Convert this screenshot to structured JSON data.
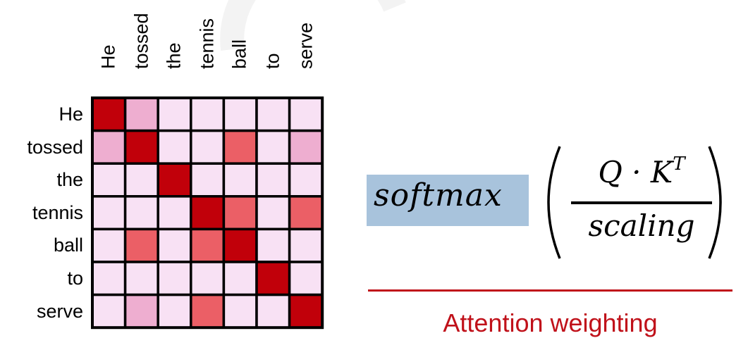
{
  "words": [
    "He",
    "tossed",
    "the",
    "tennis",
    "ball",
    "to",
    "serve"
  ],
  "attention": [
    [
      1.0,
      0.3,
      0.0,
      0.0,
      0.0,
      0.0,
      0.0
    ],
    [
      0.3,
      1.0,
      0.0,
      0.0,
      0.6,
      0.0,
      0.3
    ],
    [
      0.0,
      0.0,
      1.0,
      0.0,
      0.0,
      0.0,
      0.0
    ],
    [
      0.0,
      0.0,
      0.0,
      1.0,
      0.6,
      0.0,
      0.6
    ],
    [
      0.0,
      0.6,
      0.0,
      0.6,
      1.0,
      0.0,
      0.0
    ],
    [
      0.0,
      0.0,
      0.0,
      0.0,
      0.0,
      1.0,
      0.0
    ],
    [
      0.0,
      0.3,
      0.0,
      0.6,
      0.0,
      0.0,
      1.0
    ]
  ],
  "colors": {
    "cell_low": "#f8e1f4",
    "cell_light": "#eeaed0",
    "cell_medium": "#eb5f66",
    "cell_high": "#c1000a",
    "grid_border": "#000000",
    "highlight": "#a8c3dc",
    "caption": "#c0111a"
  },
  "formula": {
    "function": "softmax",
    "numerator": "Q · K",
    "numerator_sup": "T",
    "denominator": "scaling"
  },
  "caption": "Attention weighting"
}
